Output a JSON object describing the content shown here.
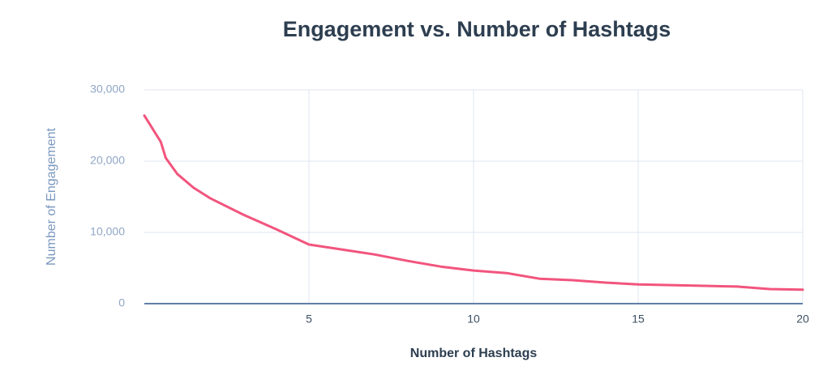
{
  "chart_data": {
    "type": "line",
    "title": "Engagement vs. Number of Hashtags",
    "x_label": "Number of Hashtags",
    "y_label": "Number of Engagement",
    "x": [
      0,
      0.5,
      0.65,
      1,
      1.5,
      2,
      3,
      4,
      5,
      6,
      7,
      8,
      9,
      10,
      11,
      12,
      13,
      14,
      15,
      16,
      17,
      18,
      19,
      20
    ],
    "values": [
      26400,
      22700,
      20450,
      18200,
      16250,
      14800,
      12500,
      10450,
      8300,
      7600,
      6900,
      6000,
      5200,
      4650,
      4300,
      3500,
      3300,
      2950,
      2700,
      2600,
      2500,
      2400,
      2050,
      1950
    ],
    "color": "#f2547d",
    "xlim": [
      0,
      20
    ],
    "xticks": [
      5,
      10,
      15,
      20
    ],
    "ylim": [
      0,
      30000
    ],
    "yticks": [
      0,
      {
        "value": 10000,
        "label": "10,000"
      },
      {
        "value": 20000,
        "label": "20,000"
      },
      {
        "value": 30000,
        "label": "30,000"
      }
    ],
    "grid": true
  }
}
